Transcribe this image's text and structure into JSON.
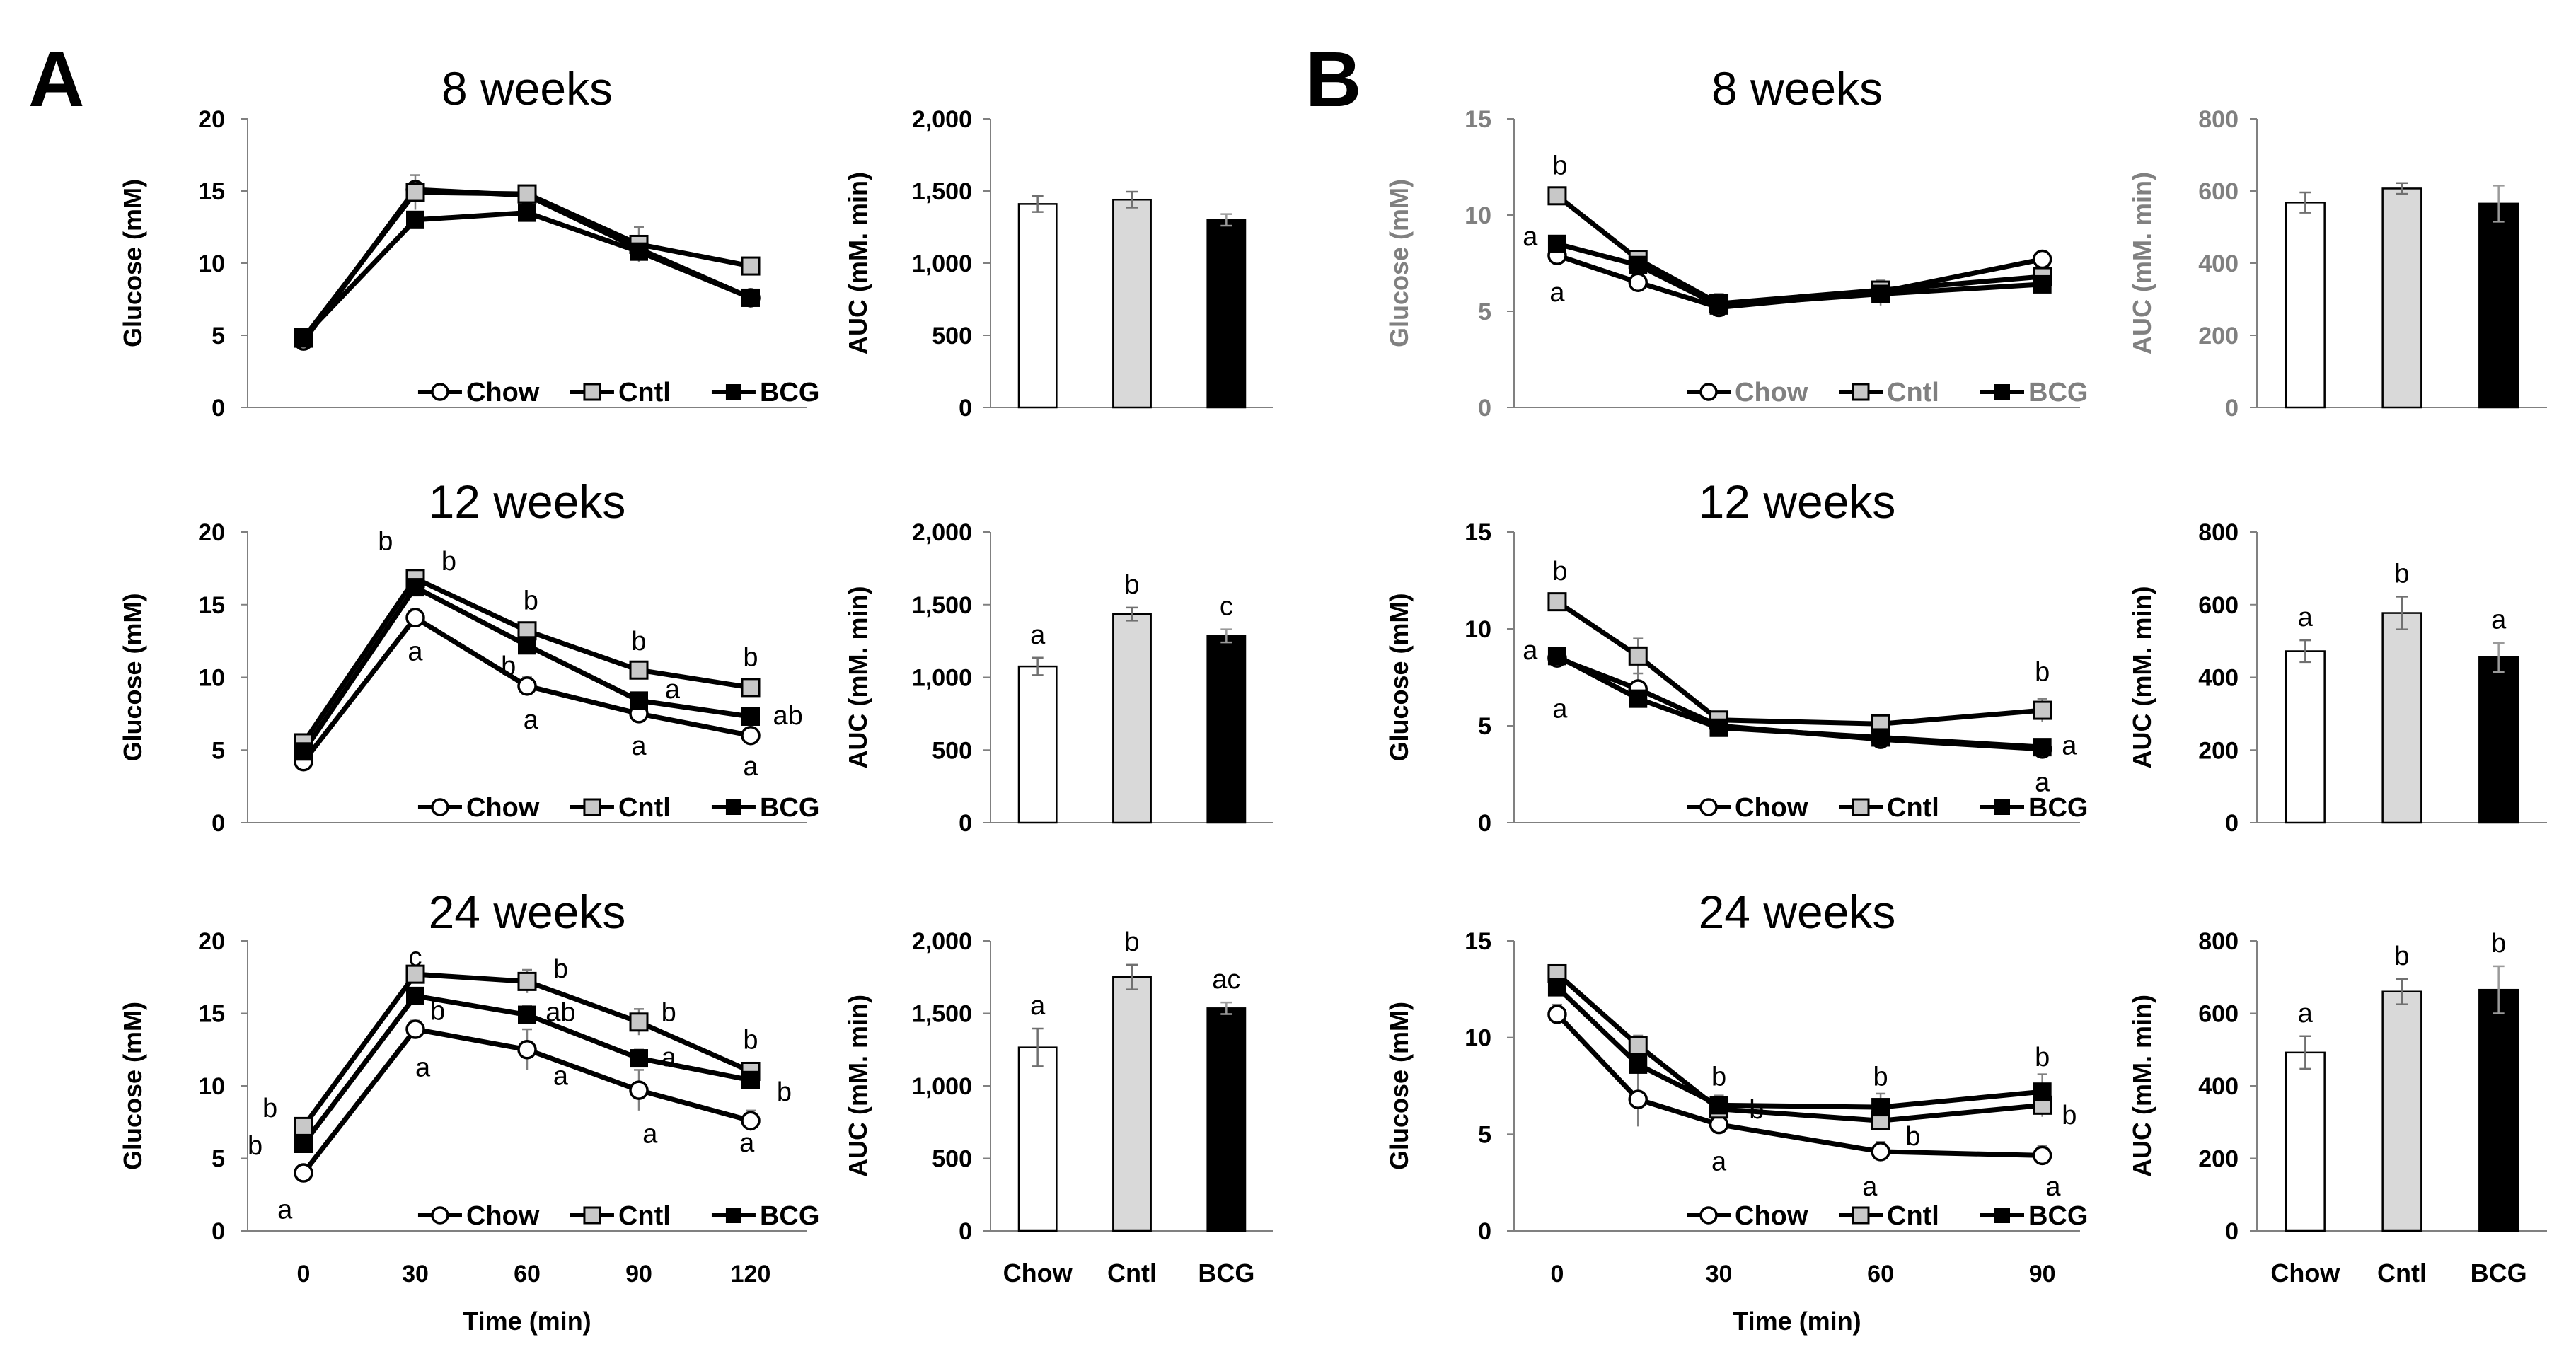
{
  "panels": [
    {
      "letter": "A"
    },
    {
      "letter": "B"
    }
  ],
  "chart_data": [
    {
      "id": "A_8wk_line",
      "type": "line",
      "panel": "A",
      "title": "8 weeks",
      "xlabel": "Time (min)",
      "ylabel": "Glucose (mM)",
      "x": [
        0,
        30,
        60,
        90,
        120
      ],
      "xlim": [
        -15,
        135
      ],
      "ylim": [
        0,
        20
      ],
      "xticks": [
        "0",
        "30",
        "60",
        "90",
        "120"
      ],
      "yticks": [
        "0",
        "5",
        "10",
        "15",
        "20"
      ],
      "show_xticks": false,
      "show_xlabel": false,
      "gray_text": false,
      "legend": [
        "Chow",
        "Cntl",
        "BCG"
      ],
      "series": [
        {
          "name": "Chow",
          "marker": "circle",
          "values": [
            4.6,
            15.1,
            14.7,
            11.0,
            7.6
          ],
          "err": [
            0.3,
            0.5,
            0.4,
            0.5,
            0.3
          ]
        },
        {
          "name": "Cntl",
          "marker": "square-gray",
          "values": [
            4.8,
            14.9,
            14.8,
            11.3,
            9.8
          ],
          "err": [
            0.3,
            1.2,
            0.5,
            1.2,
            0.4
          ]
        },
        {
          "name": "BCG",
          "marker": "square-black",
          "values": [
            4.9,
            13.0,
            13.5,
            10.8,
            7.6
          ],
          "err": [
            0.3,
            0.4,
            0.4,
            0.4,
            0.3
          ]
        }
      ],
      "labels": []
    },
    {
      "id": "A_12wk_line",
      "type": "line",
      "panel": "A",
      "title": "12 weeks",
      "xlabel": "Time (min)",
      "ylabel": "Glucose (mM)",
      "x": [
        0,
        30,
        60,
        90,
        120
      ],
      "xlim": [
        -15,
        135
      ],
      "ylim": [
        0,
        20
      ],
      "xticks": [
        "0",
        "30",
        "60",
        "90",
        "120"
      ],
      "yticks": [
        "0",
        "5",
        "10",
        "15",
        "20"
      ],
      "show_xticks": false,
      "show_xlabel": false,
      "gray_text": false,
      "legend": [
        "Chow",
        "Cntl",
        "BCG"
      ],
      "series": [
        {
          "name": "Chow",
          "marker": "circle",
          "values": [
            4.2,
            14.1,
            9.4,
            7.5,
            6.0
          ],
          "err": [
            0.3,
            0.6,
            0.6,
            0.5,
            0.4
          ]
        },
        {
          "name": "Cntl",
          "marker": "square-gray",
          "values": [
            5.5,
            16.8,
            13.2,
            10.5,
            9.3
          ],
          "err": [
            0.3,
            0.4,
            0.5,
            0.5,
            0.6
          ]
        },
        {
          "name": "BCG",
          "marker": "square-black",
          "values": [
            4.9,
            16.2,
            12.2,
            8.4,
            7.3
          ],
          "err": [
            0.3,
            0.4,
            0.5,
            0.4,
            0.4
          ]
        }
      ],
      "labels": [
        {
          "text": "b",
          "x": 22,
          "y": 19.4
        },
        {
          "text": "b",
          "x": 39,
          "y": 18.0
        },
        {
          "text": "a",
          "x": 30,
          "y": 11.8
        },
        {
          "text": "b",
          "x": 61,
          "y": 15.3
        },
        {
          "text": "b",
          "x": 55,
          "y": 10.8
        },
        {
          "text": "a",
          "x": 61,
          "y": 7.1
        },
        {
          "text": "b",
          "x": 90,
          "y": 12.5
        },
        {
          "text": "a",
          "x": 99,
          "y": 9.2
        },
        {
          "text": "a",
          "x": 90,
          "y": 5.3
        },
        {
          "text": "b",
          "x": 120,
          "y": 11.4
        },
        {
          "text": "ab",
          "x": 130,
          "y": 7.4
        },
        {
          "text": "a",
          "x": 120,
          "y": 3.9
        }
      ]
    },
    {
      "id": "A_24wk_line",
      "type": "line",
      "panel": "A",
      "title": "24 weeks",
      "xlabel": "Time (min)",
      "ylabel": "Glucose (mM)",
      "x": [
        0,
        30,
        60,
        90,
        120
      ],
      "xlim": [
        -15,
        135
      ],
      "ylim": [
        0,
        20
      ],
      "xticks": [
        "0",
        "30",
        "60",
        "90",
        "120"
      ],
      "yticks": [
        "0",
        "5",
        "10",
        "15",
        "20"
      ],
      "show_xticks": true,
      "show_xlabel": true,
      "gray_text": false,
      "legend": [
        "Chow",
        "Cntl",
        "BCG"
      ],
      "series": [
        {
          "name": "Chow",
          "marker": "circle",
          "values": [
            4.0,
            13.9,
            12.5,
            9.7,
            7.6
          ],
          "err": [
            0.3,
            0.6,
            1.4,
            1.4,
            0.7
          ]
        },
        {
          "name": "Cntl",
          "marker": "square-gray",
          "values": [
            7.2,
            17.7,
            17.2,
            14.4,
            11.0
          ],
          "err": [
            0.4,
            0.5,
            0.8,
            0.9,
            0.6
          ]
        },
        {
          "name": "BCG",
          "marker": "square-black",
          "values": [
            6.0,
            16.2,
            14.9,
            11.9,
            10.4
          ],
          "err": [
            0.3,
            0.5,
            0.6,
            0.6,
            0.5
          ]
        }
      ],
      "labels": [
        {
          "text": "b",
          "x": -9,
          "y": 8.5
        },
        {
          "text": "b",
          "x": -13,
          "y": 5.9
        },
        {
          "text": "a",
          "x": -5,
          "y": 1.5
        },
        {
          "text": "c",
          "x": 30,
          "y": 18.9
        },
        {
          "text": "b",
          "x": 36,
          "y": 15.2
        },
        {
          "text": "a",
          "x": 32,
          "y": 11.3
        },
        {
          "text": "b",
          "x": 69,
          "y": 18.1
        },
        {
          "text": "ab",
          "x": 69,
          "y": 15.1
        },
        {
          "text": "a",
          "x": 69,
          "y": 10.7
        },
        {
          "text": "b",
          "x": 98,
          "y": 15.1
        },
        {
          "text": "a",
          "x": 98,
          "y": 12.0
        },
        {
          "text": "a",
          "x": 93,
          "y": 6.7
        },
        {
          "text": "b",
          "x": 120,
          "y": 13.2
        },
        {
          "text": "b",
          "x": 129,
          "y": 9.6
        },
        {
          "text": "a",
          "x": 119,
          "y": 6.1
        }
      ]
    },
    {
      "id": "A_8wk_auc",
      "type": "bar",
      "panel": "A",
      "ylabel": "AUC (mM. min)",
      "categories": [
        "Chow",
        "Cntl",
        "BCG"
      ],
      "values": [
        1410,
        1440,
        1300
      ],
      "err": [
        55,
        55,
        40
      ],
      "ylim": [
        0,
        2000
      ],
      "yticks": [
        "0",
        "500",
        "1,000",
        "1,500",
        "2,000"
      ],
      "colors": [
        "#ffffff",
        "#d9d9d9",
        "#000000"
      ],
      "labels": [
        "",
        "",
        ""
      ],
      "show_categories": false,
      "gray_text": false
    },
    {
      "id": "A_12wk_auc",
      "type": "bar",
      "panel": "A",
      "ylabel": "AUC (mM. min)",
      "categories": [
        "Chow",
        "Cntl",
        "BCG"
      ],
      "values": [
        1075,
        1435,
        1285
      ],
      "err": [
        60,
        45,
        45
      ],
      "ylim": [
        0,
        2000
      ],
      "yticks": [
        "0",
        "500",
        "1,000",
        "1,500",
        "2,000"
      ],
      "colors": [
        "#ffffff",
        "#d9d9d9",
        "#000000"
      ],
      "labels": [
        "a",
        "b",
        "c"
      ],
      "show_categories": false,
      "gray_text": false
    },
    {
      "id": "A_24wk_auc",
      "type": "bar",
      "panel": "A",
      "ylabel": "AUC (mM. min)",
      "categories": [
        "Chow",
        "Cntl",
        "BCG"
      ],
      "values": [
        1265,
        1750,
        1535
      ],
      "err": [
        130,
        85,
        40
      ],
      "ylim": [
        0,
        2000
      ],
      "yticks": [
        "0",
        "500",
        "1,000",
        "1,500",
        "2,000"
      ],
      "colors": [
        "#ffffff",
        "#d9d9d9",
        "#000000"
      ],
      "labels": [
        "a",
        "b",
        "ac"
      ],
      "show_categories": true,
      "gray_text": false
    },
    {
      "id": "B_8wk_line",
      "type": "line",
      "panel": "B",
      "title": "8 weeks",
      "xlabel": "Time (min)",
      "ylabel": "Glucose (mM)",
      "x": [
        0,
        15,
        30,
        60,
        90
      ],
      "xlim": [
        -8,
        97
      ],
      "ylim": [
        0,
        15
      ],
      "xticks": [
        "0",
        "30",
        "60",
        "90"
      ],
      "xtick_values": [
        0,
        30,
        60,
        90
      ],
      "yticks": [
        "0",
        "5",
        "10",
        "15"
      ],
      "show_xticks": false,
      "show_xlabel": false,
      "gray_text": true,
      "legend": [
        "Chow",
        "Cntl",
        "BCG"
      ],
      "series": [
        {
          "name": "Chow",
          "marker": "circle",
          "values": [
            7.9,
            6.5,
            5.2,
            6.0,
            7.7
          ],
          "err": [
            0.3,
            0.2,
            0.3,
            0.4,
            0.3
          ]
        },
        {
          "name": "Cntl",
          "marker": "square-gray",
          "values": [
            11.0,
            7.7,
            5.4,
            6.1,
            6.8
          ],
          "err": [
            0.3,
            0.3,
            0.5,
            0.5,
            0.3
          ]
        },
        {
          "name": "BCG",
          "marker": "square-black",
          "values": [
            8.5,
            7.4,
            5.3,
            5.9,
            6.4
          ],
          "err": [
            0.3,
            0.3,
            0.4,
            0.6,
            0.3
          ]
        }
      ],
      "labels": [
        {
          "text": "b",
          "x": 0.5,
          "y": 12.6
        },
        {
          "text": "a",
          "x": -5,
          "y": 8.9
        },
        {
          "text": "a",
          "x": 0,
          "y": 6.0
        }
      ]
    },
    {
      "id": "B_12wk_line",
      "type": "line",
      "panel": "B",
      "title": "12 weeks",
      "xlabel": "Time (min)",
      "ylabel": "Glucose (mM)",
      "x": [
        0,
        15,
        30,
        60,
        90
      ],
      "xlim": [
        -8,
        97
      ],
      "ylim": [
        0,
        15
      ],
      "xticks": [
        "0",
        "30",
        "60",
        "90"
      ],
      "xtick_values": [
        0,
        30,
        60,
        90
      ],
      "yticks": [
        "0",
        "5",
        "10",
        "15"
      ],
      "show_xticks": false,
      "show_xlabel": false,
      "gray_text": false,
      "legend": [
        "Chow",
        "Cntl",
        "BCG"
      ],
      "series": [
        {
          "name": "Chow",
          "marker": "circle",
          "values": [
            8.5,
            6.9,
            5.0,
            4.3,
            3.8
          ],
          "err": [
            0.5,
            0.8,
            0.3,
            0.3,
            0.3
          ]
        },
        {
          "name": "Cntl",
          "marker": "square-gray",
          "values": [
            11.4,
            8.6,
            5.3,
            5.1,
            5.8
          ],
          "err": [
            0.3,
            0.9,
            0.3,
            0.4,
            0.6
          ]
        },
        {
          "name": "BCG",
          "marker": "square-black",
          "values": [
            8.6,
            6.4,
            4.9,
            4.4,
            3.9
          ],
          "err": [
            0.4,
            0.4,
            0.3,
            0.3,
            0.3
          ]
        }
      ],
      "labels": [
        {
          "text": "b",
          "x": 0.5,
          "y": 13.0
        },
        {
          "text": "a",
          "x": -5,
          "y": 8.9
        },
        {
          "text": "a",
          "x": 0.5,
          "y": 5.9
        },
        {
          "text": "b",
          "x": 90,
          "y": 7.8
        },
        {
          "text": "a",
          "x": 95,
          "y": 4.0
        },
        {
          "text": "a",
          "x": 90,
          "y": 2.1
        }
      ]
    },
    {
      "id": "B_24wk_line",
      "type": "line",
      "panel": "B",
      "title": "24 weeks",
      "xlabel": "Time (min)",
      "ylabel": "Glucose (mM)",
      "x": [
        0,
        15,
        30,
        60,
        90
      ],
      "xlim": [
        -8,
        97
      ],
      "ylim": [
        0,
        15
      ],
      "xticks": [
        "0",
        "30",
        "60",
        "90"
      ],
      "xtick_values": [
        0,
        30,
        60,
        90
      ],
      "yticks": [
        "0",
        "5",
        "10",
        "15"
      ],
      "show_xticks": true,
      "show_xlabel": true,
      "gray_text": false,
      "legend": [
        "Chow",
        "Cntl",
        "BCG"
      ],
      "series": [
        {
          "name": "Chow",
          "marker": "circle",
          "values": [
            11.2,
            6.8,
            5.5,
            4.1,
            3.9
          ],
          "err": [
            0.5,
            1.4,
            0.3,
            0.5,
            0.5
          ]
        },
        {
          "name": "Cntl",
          "marker": "square-gray",
          "values": [
            13.3,
            9.6,
            6.3,
            5.7,
            6.5
          ],
          "err": [
            0.4,
            0.5,
            0.5,
            0.5,
            0.6
          ]
        },
        {
          "name": "BCG",
          "marker": "square-black",
          "values": [
            12.6,
            8.6,
            6.5,
            6.4,
            7.2
          ],
          "err": [
            0.4,
            0.5,
            0.5,
            0.7,
            0.9
          ]
        }
      ],
      "labels": [
        {
          "text": "b",
          "x": 30,
          "y": 8.0
        },
        {
          "text": "b",
          "x": 37,
          "y": 6.3
        },
        {
          "text": "a",
          "x": 30,
          "y": 3.6
        },
        {
          "text": "b",
          "x": 60,
          "y": 8.0
        },
        {
          "text": "b",
          "x": 66,
          "y": 4.9
        },
        {
          "text": "a",
          "x": 58,
          "y": 2.3
        },
        {
          "text": "b",
          "x": 90,
          "y": 9.0
        },
        {
          "text": "b",
          "x": 95,
          "y": 6.0
        },
        {
          "text": "a",
          "x": 92,
          "y": 2.3
        }
      ]
    },
    {
      "id": "B_8wk_auc",
      "type": "bar",
      "panel": "B",
      "ylabel": "AUC (mM. min)",
      "categories": [
        "Chow",
        "Cntl",
        "BCG"
      ],
      "values": [
        568,
        607,
        565
      ],
      "err": [
        28,
        15,
        50
      ],
      "ylim": [
        0,
        800
      ],
      "yticks": [
        "0",
        "200",
        "400",
        "600",
        "800"
      ],
      "colors": [
        "#ffffff",
        "#d9d9d9",
        "#000000"
      ],
      "labels": [
        "",
        "",
        ""
      ],
      "show_categories": false,
      "gray_text": true
    },
    {
      "id": "B_12wk_auc",
      "type": "bar",
      "panel": "B",
      "ylabel": "AUC (mM. min)",
      "categories": [
        "Chow",
        "Cntl",
        "BCG"
      ],
      "values": [
        472,
        577,
        455
      ],
      "err": [
        30,
        45,
        40
      ],
      "ylim": [
        0,
        800
      ],
      "yticks": [
        "0",
        "200",
        "400",
        "600",
        "800"
      ],
      "colors": [
        "#ffffff",
        "#d9d9d9",
        "#000000"
      ],
      "labels": [
        "a",
        "b",
        "a"
      ],
      "show_categories": false,
      "gray_text": false
    },
    {
      "id": "B_24wk_auc",
      "type": "bar",
      "panel": "B",
      "ylabel": "AUC (mM. min)",
      "categories": [
        "Chow",
        "Cntl",
        "BCG"
      ],
      "values": [
        492,
        660,
        665
      ],
      "err": [
        45,
        35,
        65
      ],
      "ylim": [
        0,
        800
      ],
      "yticks": [
        "0",
        "200",
        "400",
        "600",
        "800"
      ],
      "colors": [
        "#ffffff",
        "#d9d9d9",
        "#000000"
      ],
      "labels": [
        "a",
        "b",
        "b"
      ],
      "show_categories": true,
      "gray_text": false
    }
  ]
}
